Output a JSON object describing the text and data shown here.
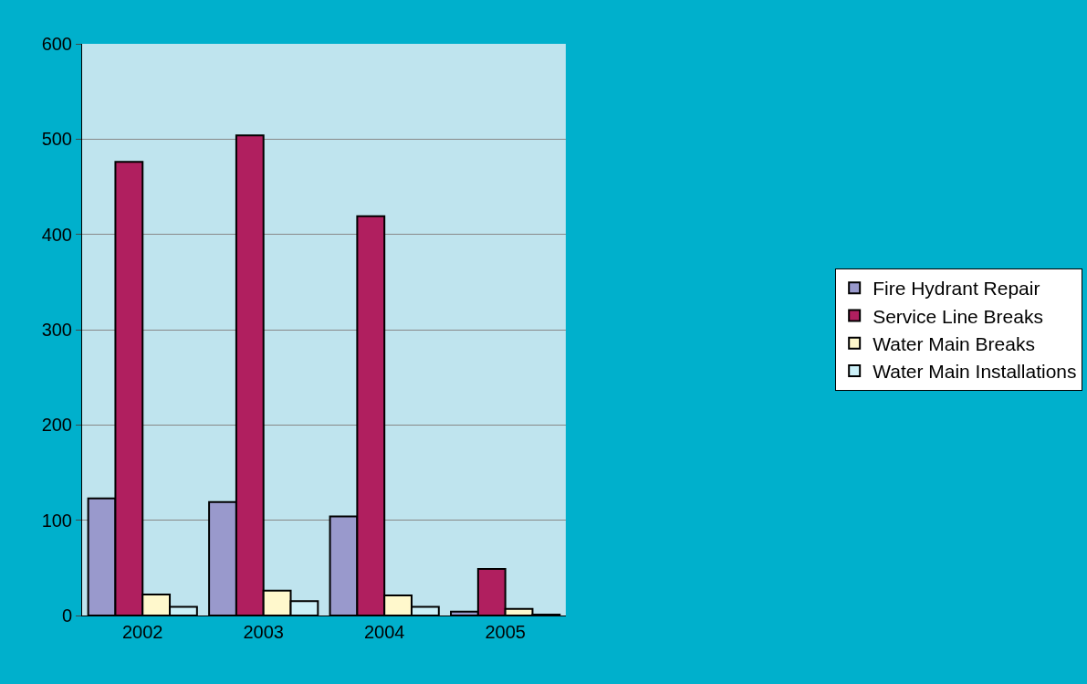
{
  "chart_data": {
    "type": "bar",
    "categories": [
      "2002",
      "2003",
      "2004",
      "2005"
    ],
    "series": [
      {
        "name": "Fire Hydrant Repair",
        "color": "#9999cc",
        "values": [
          123,
          119,
          104,
          4
        ]
      },
      {
        "name": "Service Line Breaks",
        "color": "#b01f5f",
        "values": [
          476,
          504,
          419,
          49
        ]
      },
      {
        "name": "Water Main Breaks",
        "color": "#fff8cc",
        "values": [
          22,
          26,
          21,
          7
        ]
      },
      {
        "name": "Water Main Installations",
        "color": "#ccf0f8",
        "values": [
          9,
          15,
          9,
          1
        ]
      }
    ],
    "ylim": [
      0,
      600
    ],
    "yticks": [
      0,
      100,
      200,
      300,
      400,
      500,
      600
    ],
    "grid": "y",
    "legend": "right"
  }
}
